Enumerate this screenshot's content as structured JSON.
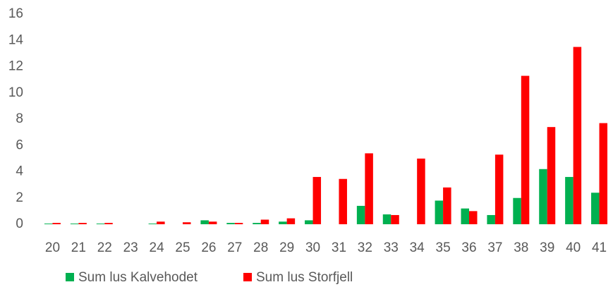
{
  "chart_data": {
    "type": "bar",
    "categories": [
      "20",
      "21",
      "22",
      "23",
      "24",
      "25",
      "26",
      "27",
      "28",
      "29",
      "30",
      "31",
      "32",
      "33",
      "34",
      "35",
      "36",
      "37",
      "38",
      "39",
      "40",
      "41"
    ],
    "series": [
      {
        "name": "Sum lus Kalvehodet",
        "color": "#00b050",
        "values": [
          0.05,
          0.05,
          0.05,
          0,
          0.05,
          0,
          0.3,
          0.1,
          0.1,
          0.2,
          0.3,
          0,
          1.4,
          0.75,
          0,
          1.8,
          1.2,
          0.7,
          2.0,
          4.2,
          3.6,
          2.4
        ]
      },
      {
        "name": "Sum lus Storfjell",
        "color": "#ff0000",
        "values": [
          0.1,
          0.1,
          0.1,
          0,
          0.2,
          0.15,
          0.2,
          0.1,
          0.35,
          0.45,
          3.6,
          3.45,
          5.4,
          0.7,
          5.0,
          2.8,
          1.0,
          5.3,
          11.3,
          7.4,
          13.5,
          7.7
        ]
      }
    ],
    "ylim": [
      0,
      16
    ],
    "yticks": [
      0,
      2,
      4,
      6,
      8,
      10,
      12,
      14,
      16
    ],
    "grid": false,
    "legend": "bottom"
  }
}
